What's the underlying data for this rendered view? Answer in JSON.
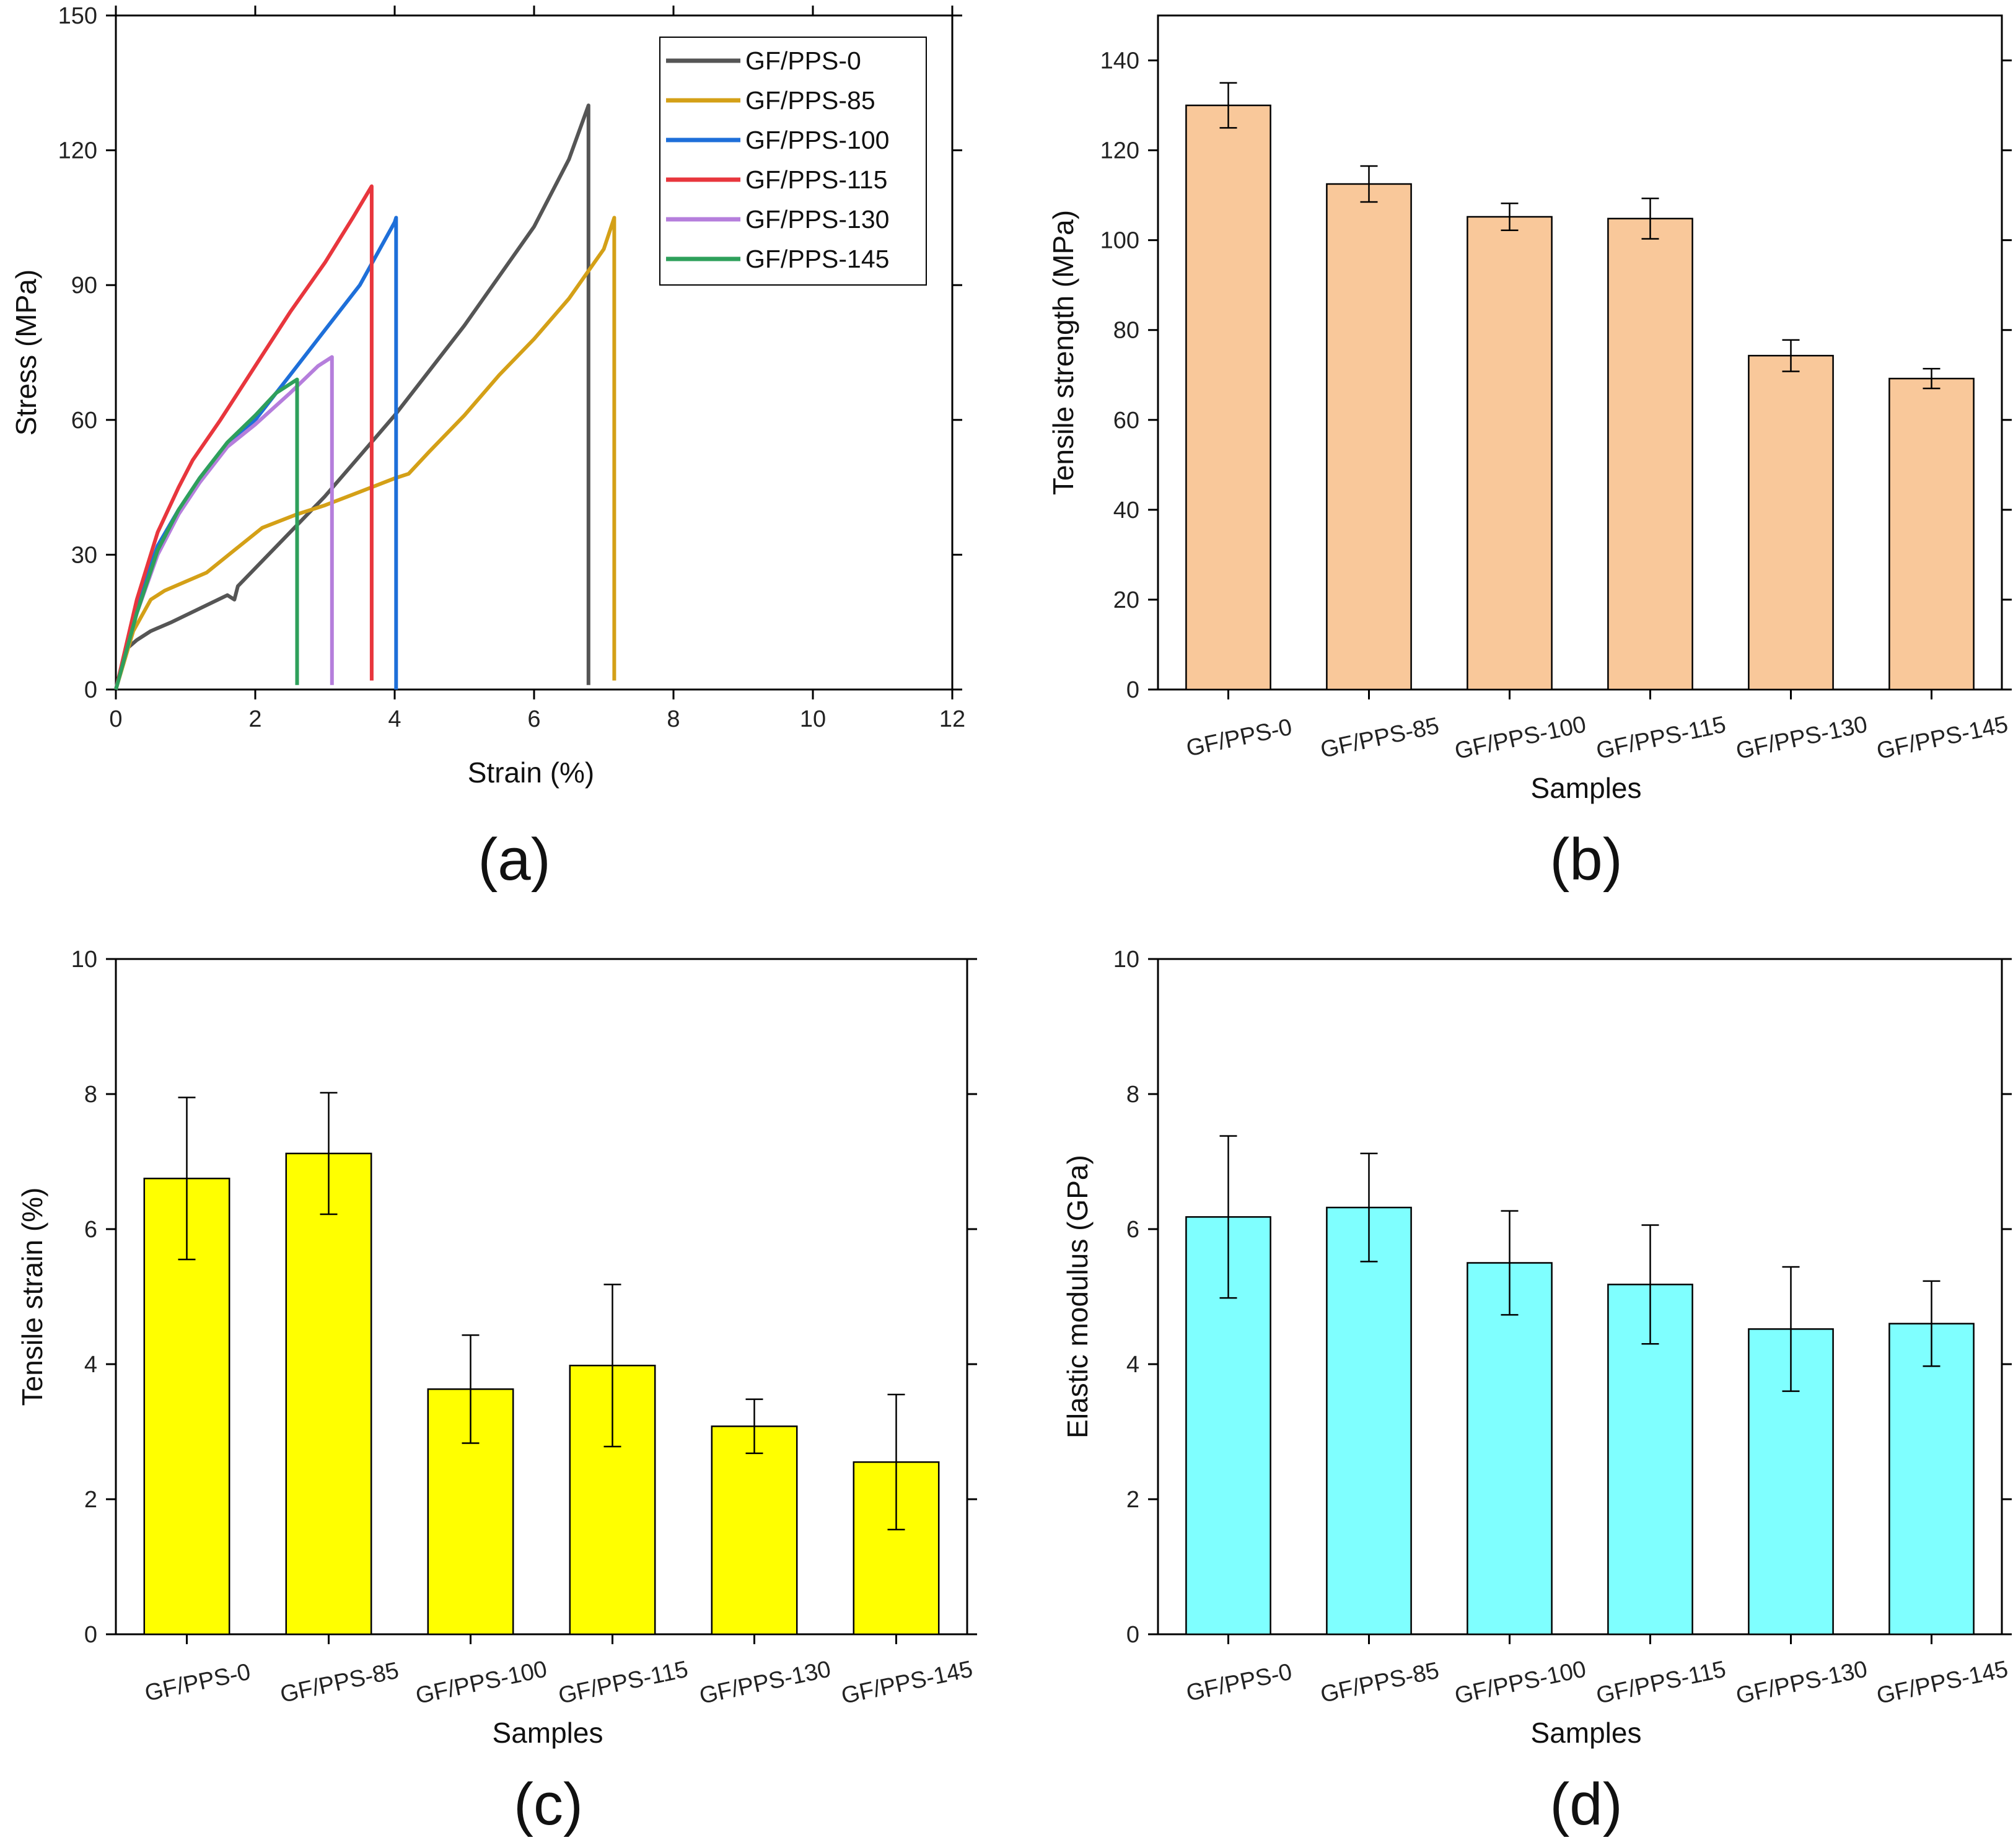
{
  "chart_data": [
    {
      "type": "line",
      "panel": "(a)",
      "xlabel": "Strain (%)",
      "ylabel": "Stress (MPa)",
      "xlim": [
        0,
        12
      ],
      "ylim": [
        0,
        150
      ],
      "xticks": [
        0,
        2,
        4,
        6,
        8,
        10,
        12
      ],
      "yticks": [
        0,
        30,
        60,
        90,
        120,
        150
      ],
      "legend_position": "top-right",
      "series": [
        {
          "name": "GF/PPS-0",
          "color": "#555555",
          "points": [
            [
              0,
              0
            ],
            [
              0.15,
              9
            ],
            [
              0.3,
              11
            ],
            [
              0.5,
              13
            ],
            [
              0.8,
              15
            ],
            [
              1.2,
              18
            ],
            [
              1.6,
              21
            ],
            [
              1.7,
              20
            ],
            [
              1.75,
              23
            ],
            [
              2,
              27
            ],
            [
              2.5,
              35
            ],
            [
              3,
              43
            ],
            [
              3.5,
              52
            ],
            [
              4,
              61
            ],
            [
              4.5,
              71
            ],
            [
              5,
              81
            ],
            [
              5.5,
              92
            ],
            [
              6,
              103
            ],
            [
              6.5,
              118
            ],
            [
              6.78,
              130
            ],
            [
              6.78,
              1
            ]
          ]
        },
        {
          "name": "GF/PPS-85",
          "color": "#D4A017",
          "points": [
            [
              0,
              0
            ],
            [
              0.25,
              13
            ],
            [
              0.5,
              20
            ],
            [
              0.7,
              22
            ],
            [
              1,
              24
            ],
            [
              1.3,
              26
            ],
            [
              1.7,
              31
            ],
            [
              2.1,
              36
            ],
            [
              2.6,
              39
            ],
            [
              3,
              41
            ],
            [
              3.5,
              44
            ],
            [
              4,
              47
            ],
            [
              4.2,
              48
            ],
            [
              4.5,
              53
            ],
            [
              5,
              61
            ],
            [
              5.5,
              70
            ],
            [
              6,
              78
            ],
            [
              6.5,
              87
            ],
            [
              7,
              98
            ],
            [
              7.15,
              105
            ],
            [
              7.15,
              2
            ]
          ]
        },
        {
          "name": "GF/PPS-100",
          "color": "#1E6FD9",
          "points": [
            [
              0,
              0
            ],
            [
              0.3,
              19
            ],
            [
              0.6,
              32
            ],
            [
              0.9,
              40
            ],
            [
              1.2,
              47
            ],
            [
              1.5,
              53
            ],
            [
              2,
              60
            ],
            [
              2.5,
              70
            ],
            [
              3,
              80
            ],
            [
              3.5,
              90
            ],
            [
              4,
              104
            ],
            [
              4.02,
              105
            ],
            [
              4.02,
              0
            ]
          ]
        },
        {
          "name": "GF/PPS-115",
          "color": "#E8363D",
          "points": [
            [
              0,
              0
            ],
            [
              0.3,
              20
            ],
            [
              0.6,
              35
            ],
            [
              0.9,
              45
            ],
            [
              1.1,
              51
            ],
            [
              1.5,
              60
            ],
            [
              2,
              72
            ],
            [
              2.5,
              84
            ],
            [
              3,
              95
            ],
            [
              3.4,
              105
            ],
            [
              3.67,
              112
            ],
            [
              3.67,
              2
            ]
          ]
        },
        {
          "name": "GF/PPS-130",
          "color": "#B57EDC",
          "points": [
            [
              0,
              0
            ],
            [
              0.3,
              17
            ],
            [
              0.6,
              30
            ],
            [
              0.9,
              39
            ],
            [
              1.2,
              46
            ],
            [
              1.6,
              54
            ],
            [
              2,
              59
            ],
            [
              2.5,
              66
            ],
            [
              2.9,
              72
            ],
            [
              3.1,
              74
            ],
            [
              3.1,
              1
            ]
          ]
        },
        {
          "name": "GF/PPS-145",
          "color": "#2EA05B",
          "points": [
            [
              0,
              0
            ],
            [
              0.3,
              17
            ],
            [
              0.6,
              31
            ],
            [
              0.9,
              40
            ],
            [
              1.2,
              47
            ],
            [
              1.6,
              55
            ],
            [
              2,
              61
            ],
            [
              2.3,
              66
            ],
            [
              2.6,
              69
            ],
            [
              2.6,
              1
            ]
          ]
        }
      ]
    },
    {
      "type": "bar",
      "panel": "(b)",
      "xlabel": "Samples",
      "ylabel": "Tensile strength (MPa)",
      "ylim": [
        0,
        150
      ],
      "yticks": [
        0,
        20,
        40,
        60,
        80,
        100,
        120,
        140
      ],
      "bar_color": "#F9C89A",
      "categories": [
        "GF/PPS-0",
        "GF/PPS-85",
        "GF/PPS-100",
        "GF/PPS-115",
        "GF/PPS-130",
        "GF/PPS-145"
      ],
      "values": [
        130,
        112.5,
        105.2,
        104.8,
        74.3,
        69.2
      ],
      "errors": [
        5,
        4,
        3,
        4.5,
        3.5,
        2.2
      ]
    },
    {
      "type": "bar",
      "panel": "(c)",
      "xlabel": "Samples",
      "ylabel": "Tensile strain (%)",
      "ylim": [
        0,
        10
      ],
      "yticks": [
        0,
        2,
        4,
        6,
        8,
        10
      ],
      "bar_color": "#FFFF00",
      "categories": [
        "GF/PPS-0",
        "GF/PPS-85",
        "GF/PPS-100",
        "GF/PPS-115",
        "GF/PPS-130",
        "GF/PPS-145"
      ],
      "values": [
        6.75,
        7.12,
        3.63,
        3.98,
        3.08,
        2.55
      ],
      "errors": [
        1.2,
        0.9,
        0.8,
        1.2,
        0.4,
        1.0
      ]
    },
    {
      "type": "bar",
      "panel": "(d)",
      "xlabel": "Samples",
      "ylabel": "Elastic modulus (GPa)",
      "ylim": [
        0,
        10
      ],
      "yticks": [
        0,
        2,
        4,
        6,
        8,
        10
      ],
      "bar_color": "#7FFFFF",
      "categories": [
        "GF/PPS-0",
        "GF/PPS-85",
        "GF/PPS-100",
        "GF/PPS-115",
        "GF/PPS-130",
        "GF/PPS-145"
      ],
      "values": [
        6.18,
        6.32,
        5.5,
        5.18,
        4.52,
        4.6
      ],
      "errors": [
        1.2,
        0.8,
        0.77,
        0.88,
        0.92,
        0.63
      ]
    }
  ]
}
